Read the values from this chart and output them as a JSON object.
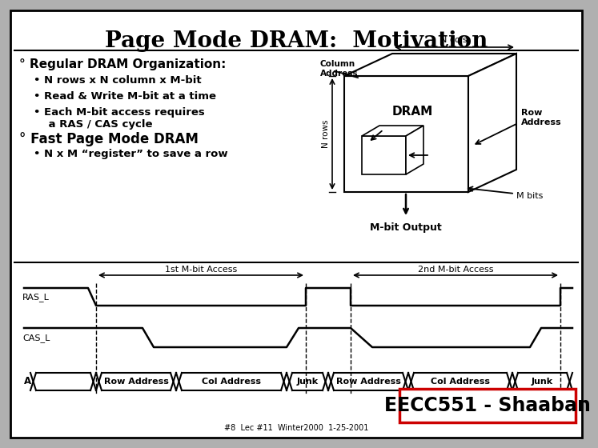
{
  "title": "Page Mode DRAM:  Motivation",
  "bullet1_head": "° Regular DRAM Organization:",
  "bullet1_items": [
    "N rows x N column x M-bit",
    "Read & Write M-bit at a time",
    "Each M-bit access requires\n    a RAS / CAS cycle"
  ],
  "bullet2_head": "° Fast Page Mode DRAM",
  "bullet2_items": [
    "N x M “register” to save a row"
  ],
  "footer_text": "EECC551 - Shaaban",
  "footer_sub": "#8  Lec #11  Winter2000  1-25-2001",
  "timing_label_ras": "RAS_L",
  "timing_label_cas": "CAS_L",
  "addr_labels": [
    "Row Address",
    "Col Address",
    "Junk",
    "Row Address",
    "Col Address",
    "Junk"
  ],
  "access_label1": "1st M-bit Access",
  "access_label2": "2nd M-bit Access",
  "dram_label": "DRAM",
  "ncols_label": "N cols",
  "nrows_label": "N rows",
  "col_addr_label": "Column\nAddress",
  "row_addr_label": "Row\nAddress",
  "mbits_label": "M bits",
  "mbit_output_label": "M-bit Output"
}
